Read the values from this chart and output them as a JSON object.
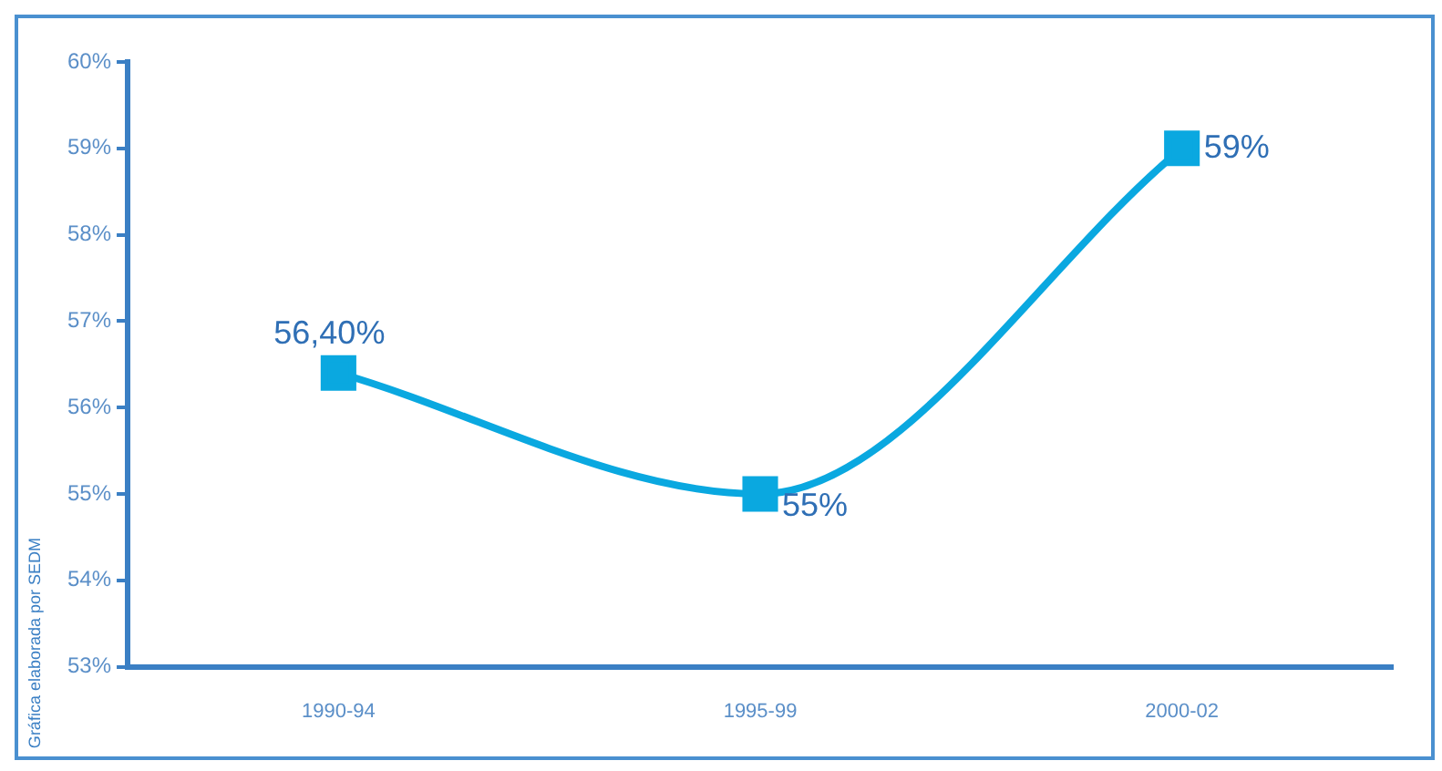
{
  "chart_data": {
    "type": "line",
    "categories": [
      "1990-94",
      "1995-99",
      "2000-02"
    ],
    "series": [
      {
        "color": "#0aa8e0",
        "values": [
          56.4,
          55,
          59
        ],
        "value_labels": [
          "56,40%",
          "55%",
          "59%"
        ]
      }
    ],
    "ylim": [
      53,
      60
    ],
    "yticks": [
      {
        "value": 53,
        "label": "53%"
      },
      {
        "value": 54,
        "label": "54%"
      },
      {
        "value": 55,
        "label": "55%"
      },
      {
        "value": 56,
        "label": "56%"
      },
      {
        "value": 57,
        "label": "57%"
      },
      {
        "value": 58,
        "label": "58%"
      },
      {
        "value": 59,
        "label": "59%"
      },
      {
        "value": 60,
        "label": "60%"
      }
    ],
    "grid": false,
    "legend": false,
    "marker": "square",
    "line_style": "solid",
    "annotations": [
      "Gráfica elaborada por SEDM"
    ]
  }
}
